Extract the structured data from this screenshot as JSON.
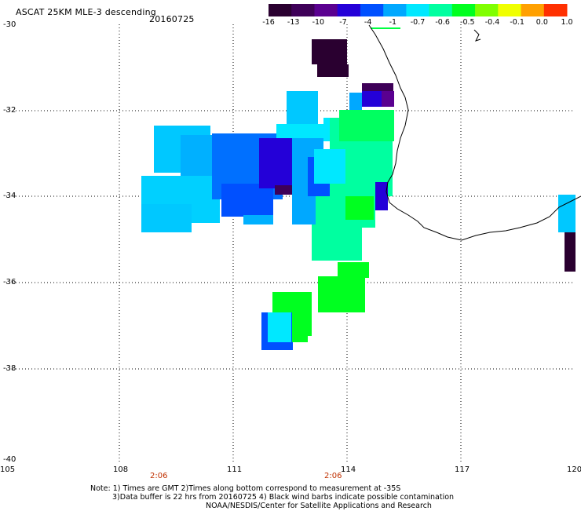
{
  "header": {
    "title": "ASCAT 25KM MLE-3 descending",
    "date": "20160725"
  },
  "colorbar": {
    "labels": [
      "-16",
      "-13",
      "-10",
      "-7",
      "-4",
      "-1",
      "-0.7",
      "-0.6",
      "-0.5",
      "-0.4",
      "-0.1",
      "0.0",
      "1.0"
    ],
    "colors": [
      "#2a0030",
      "#3e0058",
      "#5a0090",
      "#2400d8",
      "#0050ff",
      "#00a8ff",
      "#00e8ff",
      "#00ffa0",
      "#00ff20",
      "#80ff00",
      "#f0ff00",
      "#ffa000",
      "#ff3000"
    ],
    "indicator_color": "#00ff40"
  },
  "axes": {
    "y_labels": [
      "-30",
      "-32",
      "-34",
      "-36",
      "-38",
      "-40"
    ],
    "x_labels": [
      "105",
      "108",
      "111",
      "114",
      "117",
      "120"
    ],
    "time_labels": [
      "2:06",
      "2:06"
    ]
  },
  "notes": {
    "line1": "Note: 1) Times are GMT 2)Times along bottom correspond to measurement at -35S",
    "line2": "3)Data buffer is 22 hrs from 20160725 4) Black wind barbs indicate possible contamination",
    "line3": "NOAA/NESDIS/Center for Satellite Applications and Research"
  }
}
